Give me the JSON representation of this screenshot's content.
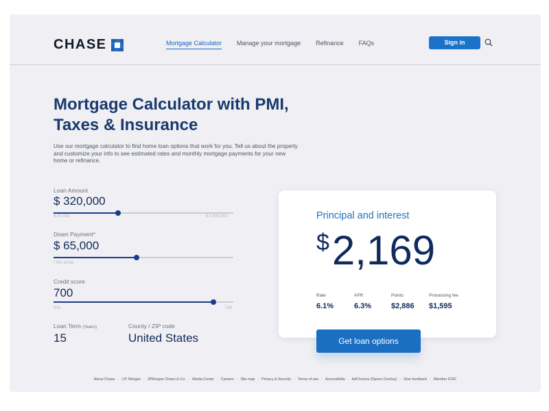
{
  "brand": {
    "name": "CHASE",
    "accent": "#1a73c9",
    "logo_icon": "chase-octagon-icon"
  },
  "nav": {
    "items": [
      {
        "label": "Mortgage Calculator",
        "active": true
      },
      {
        "label": "Manage your mortgage",
        "active": false
      },
      {
        "label": "Refinance",
        "active": false
      },
      {
        "label": "FAQs",
        "active": false
      }
    ],
    "signin_label": "Sign in",
    "search_icon": "search-icon"
  },
  "hero": {
    "title_line1": "Mortgage Calculator with PMI,",
    "title_line2": "Taxes & Insurance",
    "intro": "Use our mortgage calculator to find home loan options that work for you. Tell us about the property and customize your info to see estimated rates and monthly mortgage payments for your new home or refinance."
  },
  "inputs": {
    "loan_amount": {
      "label": "Loan Amount",
      "value": "$ 320,000",
      "min": "$ 50,000",
      "max": "$ 3,000,000",
      "slider_fraction": 0.36
    },
    "down_payment": {
      "label": "Down Payment*",
      "value": "$ 65,000",
      "hint": "* 5% of the",
      "slider_fraction": 0.46
    },
    "credit_score": {
      "label": "Credit score",
      "value": "700",
      "min": "515",
      "max": "749",
      "slider_fraction": 0.89
    },
    "loan_term": {
      "label": "Loan Term",
      "unit": "(Years)",
      "value": "15"
    },
    "location": {
      "label": "County / ZIP code",
      "value": "United States"
    }
  },
  "result": {
    "title": "Principal and interest",
    "currency": "$",
    "amount": "2,169",
    "stats": [
      {
        "label": "Rate",
        "value": "6.1%"
      },
      {
        "label": "APR",
        "value": "6.3%"
      },
      {
        "label": "Points",
        "value": "$2,886"
      },
      {
        "label": "Processing fee",
        "value": "$1,595"
      }
    ],
    "cta_label": "Get loan options"
  },
  "footer": {
    "links": [
      "About Chase",
      "J.P. Morgan",
      "JPMorgan Chase & Co.",
      "Media Center",
      "Careers",
      "Site map",
      "Privacy & Security",
      "Terms of use",
      "Accessibility",
      "AdChoices (Opens Overlay)",
      "Give feedback",
      "Member FDIC"
    ]
  }
}
